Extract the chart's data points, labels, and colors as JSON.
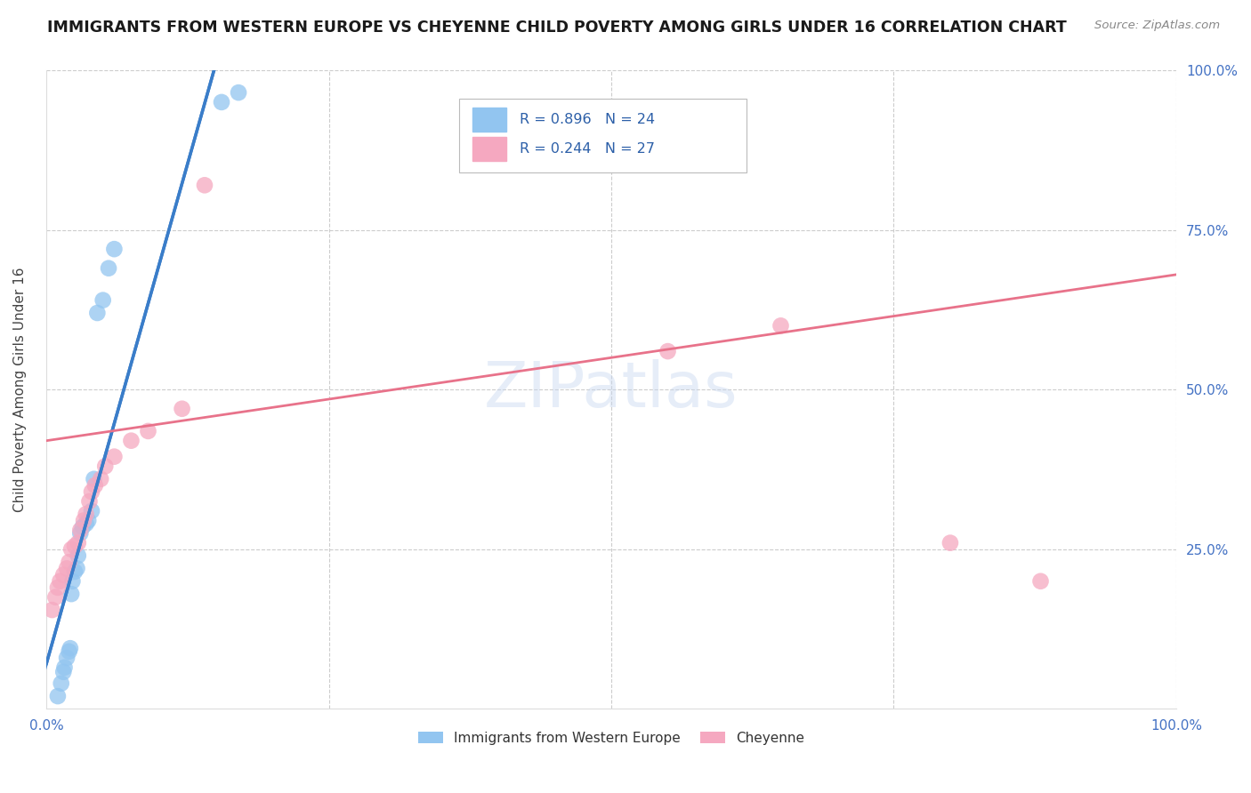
{
  "title": "IMMIGRANTS FROM WESTERN EUROPE VS CHEYENNE CHILD POVERTY AMONG GIRLS UNDER 16 CORRELATION CHART",
  "source": "Source: ZipAtlas.com",
  "ylabel": "Child Poverty Among Girls Under 16",
  "watermark": "ZIPatlas",
  "xlim": [
    0.0,
    1.0
  ],
  "ylim": [
    0.0,
    1.0
  ],
  "blue_R": 0.896,
  "blue_N": 24,
  "pink_R": 0.244,
  "pink_N": 27,
  "blue_color": "#92C5F0",
  "pink_color": "#F5A8C0",
  "blue_line_color": "#3A7DC9",
  "pink_line_color": "#E8728A",
  "legend_blue_label": "Immigrants from Western Europe",
  "legend_pink_label": "Cheyenne",
  "blue_points_x": [
    0.01,
    0.013,
    0.015,
    0.016,
    0.018,
    0.02,
    0.021,
    0.022,
    0.023,
    0.025,
    0.027,
    0.028,
    0.03,
    0.032,
    0.035,
    0.037,
    0.04,
    0.042,
    0.045,
    0.05,
    0.055,
    0.06,
    0.155,
    0.17
  ],
  "blue_points_y": [
    0.02,
    0.04,
    0.058,
    0.065,
    0.08,
    0.09,
    0.095,
    0.18,
    0.2,
    0.215,
    0.22,
    0.24,
    0.275,
    0.285,
    0.29,
    0.295,
    0.31,
    0.36,
    0.62,
    0.64,
    0.69,
    0.72,
    0.95,
    0.965
  ],
  "pink_points_x": [
    0.005,
    0.008,
    0.01,
    0.012,
    0.015,
    0.018,
    0.02,
    0.022,
    0.025,
    0.028,
    0.03,
    0.033,
    0.035,
    0.038,
    0.04,
    0.043,
    0.048,
    0.052,
    0.06,
    0.075,
    0.09,
    0.12,
    0.14,
    0.55,
    0.65,
    0.8,
    0.88
  ],
  "pink_points_y": [
    0.155,
    0.175,
    0.19,
    0.2,
    0.21,
    0.22,
    0.23,
    0.25,
    0.255,
    0.26,
    0.28,
    0.295,
    0.305,
    0.325,
    0.34,
    0.35,
    0.36,
    0.38,
    0.395,
    0.42,
    0.435,
    0.47,
    0.82,
    0.56,
    0.6,
    0.26,
    0.2
  ],
  "pink_line_x0": 0.0,
  "pink_line_y0": 0.42,
  "pink_line_x1": 1.0,
  "pink_line_y1": 0.68,
  "background_color": "#FFFFFF",
  "grid_color": "#CCCCCC",
  "tick_color": "#4472C4",
  "title_fontsize": 12.5,
  "axis_fontsize": 11,
  "marker_size": 180
}
